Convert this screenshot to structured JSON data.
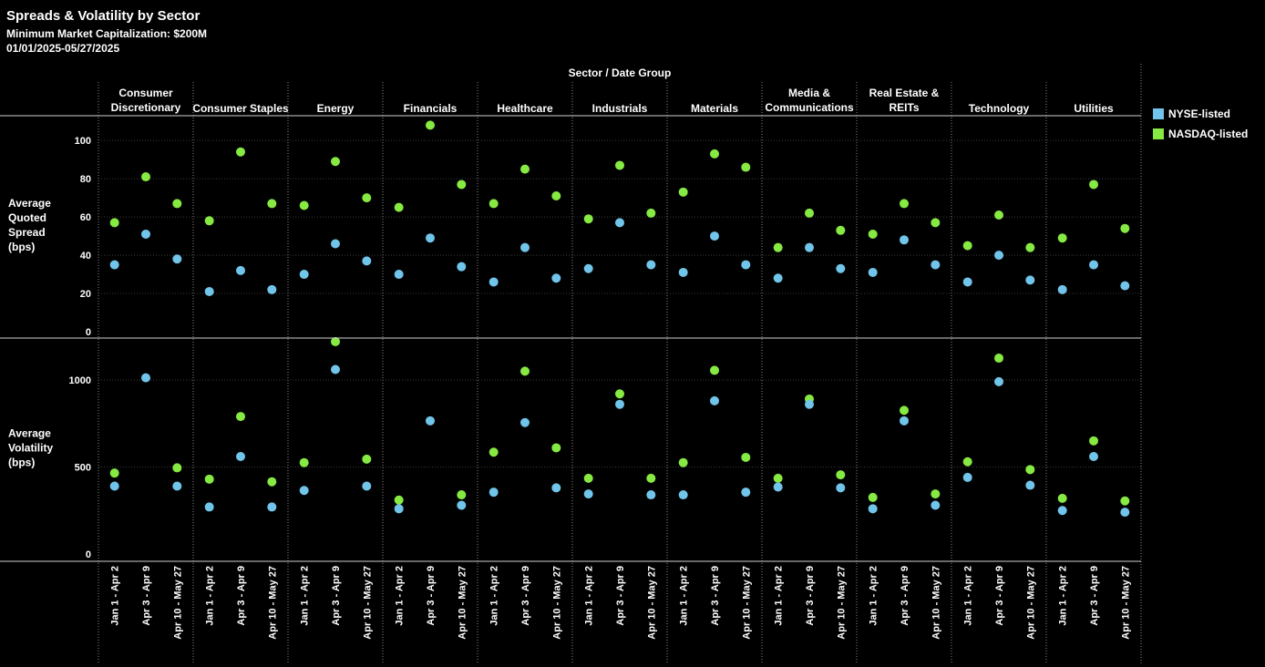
{
  "header": {
    "title": "Spreads & Volatility by Sector",
    "subtitle": "Minimum Market Capitalization: $200M",
    "date_range": "01/01/2025-05/27/2025"
  },
  "colors": {
    "nyse": "#71c5ea",
    "nasdaq": "#86ea42",
    "grid": "#3a3a3a",
    "axis": "#d0d0d0"
  },
  "legend": [
    {
      "label": "NYSE-listed",
      "color": "#71c5ea"
    },
    {
      "label": "NASDAQ-listed",
      "color": "#86ea42"
    }
  ],
  "chart_data": {
    "type": "scatter",
    "column_header": "Sector / Date Group",
    "sectors": [
      [
        "Consumer",
        "Discretionary"
      ],
      [
        "Consumer Staples"
      ],
      [
        "Energy"
      ],
      [
        "Financials"
      ],
      [
        "Healthcare"
      ],
      [
        "Industrials"
      ],
      [
        "Materials"
      ],
      [
        "Media &",
        "Communications"
      ],
      [
        "Real Estate &",
        "REITs"
      ],
      [
        "Technology"
      ],
      [
        "Utilities"
      ]
    ],
    "date_groups": [
      "Jan 1 - Apr 2",
      "Apr 3 - Apr 9",
      "Apr 10 - May 27"
    ],
    "panels": [
      {
        "ylabel": [
          "Average",
          "Quoted",
          "Spread",
          "(bps)"
        ],
        "ylim": [
          0,
          112
        ],
        "ticks": [
          0,
          20,
          40,
          60,
          80,
          100
        ],
        "nyse": [
          [
            35,
            51,
            38
          ],
          [
            21,
            32,
            22
          ],
          [
            30,
            46,
            37
          ],
          [
            30,
            49,
            34
          ],
          [
            26,
            44,
            28
          ],
          [
            33,
            57,
            35
          ],
          [
            31,
            50,
            35
          ],
          [
            28,
            44,
            33
          ],
          [
            31,
            48,
            35
          ],
          [
            26,
            40,
            27
          ],
          [
            22,
            35,
            24
          ]
        ],
        "nasdaq": [
          [
            57,
            81,
            67
          ],
          [
            58,
            94,
            67
          ],
          [
            66,
            89,
            70
          ],
          [
            65,
            108,
            77
          ],
          [
            67,
            85,
            71
          ],
          [
            59,
            87,
            62
          ],
          [
            73,
            93,
            86
          ],
          [
            44,
            62,
            53
          ],
          [
            51,
            67,
            57
          ],
          [
            45,
            61,
            44
          ],
          [
            49,
            77,
            54
          ]
        ]
      },
      {
        "ylabel": [
          "Average",
          "Volatility",
          "(bps)"
        ],
        "ylim": [
          0,
          1230
        ],
        "ticks": [
          0,
          500,
          1000
        ],
        "nyse": [
          [
            390,
            1012,
            390
          ],
          [
            270,
            560,
            270
          ],
          [
            365,
            1060,
            390
          ],
          [
            260,
            765,
            280
          ],
          [
            355,
            755,
            380
          ],
          [
            345,
            860,
            340
          ],
          [
            340,
            880,
            355
          ],
          [
            385,
            860,
            380
          ],
          [
            260,
            765,
            280
          ],
          [
            440,
            990,
            395
          ],
          [
            250,
            560,
            240
          ]
        ],
        "nasdaq": [
          [
            465,
            null,
            495
          ],
          [
            430,
            790,
            415
          ],
          [
            525,
            1220,
            545
          ],
          [
            310,
            null,
            340
          ],
          [
            585,
            1050,
            610
          ],
          [
            435,
            920,
            435
          ],
          [
            525,
            1055,
            555
          ],
          [
            435,
            890,
            455
          ],
          [
            325,
            825,
            345
          ],
          [
            530,
            1125,
            485
          ],
          [
            320,
            650,
            305
          ]
        ]
      }
    ]
  }
}
